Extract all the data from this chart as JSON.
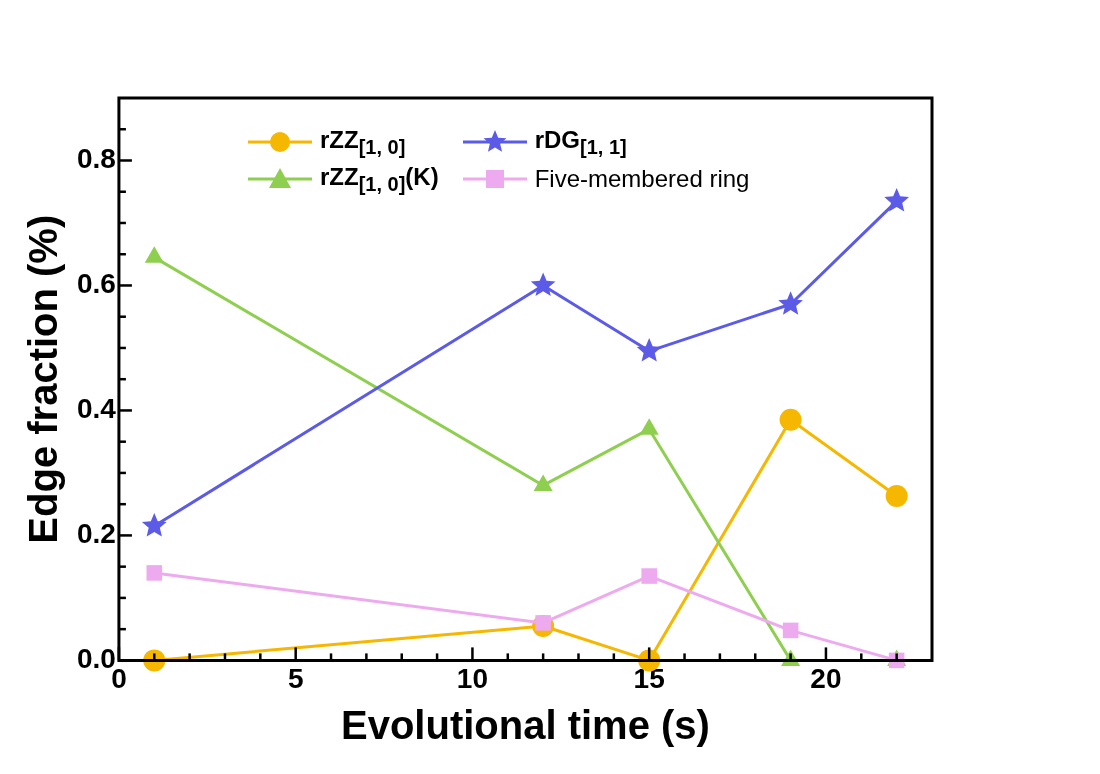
{
  "chart_data": {
    "type": "line",
    "xlabel": "Evolutional time (s)",
    "ylabel": "Edge fraction (%)",
    "x": [
      1,
      12,
      15,
      19,
      22
    ],
    "xlim": [
      0,
      23
    ],
    "xticks": [
      0,
      {
        "value": 1,
        "label": null
      },
      {
        "value": 2,
        "label": null
      },
      {
        "value": 3,
        "label": null
      },
      {
        "value": 4,
        "label": null
      },
      5,
      {
        "value": 6,
        "label": null
      },
      {
        "value": 7,
        "label": null
      },
      {
        "value": 8,
        "label": null
      },
      {
        "value": 9,
        "label": null
      },
      10,
      {
        "value": 11,
        "label": null
      },
      {
        "value": 12,
        "label": null
      },
      {
        "value": 13,
        "label": null
      },
      {
        "value": 14,
        "label": null
      },
      15,
      {
        "value": 16,
        "label": null
      },
      {
        "value": 17,
        "label": null
      },
      {
        "value": 18,
        "label": null
      },
      {
        "value": 19,
        "label": null
      },
      20,
      {
        "value": 21,
        "label": null
      },
      {
        "value": 22,
        "label": null
      }
    ],
    "ylim": [
      0,
      0.9
    ],
    "yticks": [
      {
        "value": 0,
        "label": "0.0"
      },
      {
        "value": 0.05,
        "label": null
      },
      {
        "value": 0.1,
        "label": null
      },
      {
        "value": 0.15,
        "label": null
      },
      {
        "value": 0.2,
        "label": "0.2"
      },
      {
        "value": 0.25,
        "label": null
      },
      {
        "value": 0.3,
        "label": null
      },
      {
        "value": 0.35,
        "label": null
      },
      {
        "value": 0.4,
        "label": "0.4"
      },
      {
        "value": 0.45,
        "label": null
      },
      {
        "value": 0.5,
        "label": null
      },
      {
        "value": 0.55,
        "label": null
      },
      {
        "value": 0.6,
        "label": "0.6"
      },
      {
        "value": 0.65,
        "label": null
      },
      {
        "value": 0.7,
        "label": null
      },
      {
        "value": 0.75,
        "label": null
      },
      {
        "value": 0.8,
        "label": "0.8"
      },
      {
        "value": 0.85,
        "label": null
      }
    ],
    "grid": false,
    "legend": "top left",
    "series": [
      {
        "name": "rZZ$_{[1, 0]}$",
        "color": "#f5b700",
        "marker": "circle",
        "values": [
          0,
          0.055,
          0,
          0.385,
          0.263
        ]
      },
      {
        "name": "rZZ$_{[1, 0]}$(K)",
        "color": "#8fcf4f",
        "marker": "triangle",
        "values": [
          0.645,
          0.28,
          0.37,
          0,
          0
        ]
      },
      {
        "name": "rDG$_{[1, 1]}$",
        "color": "#5b5be8",
        "marker": "star",
        "values": [
          0.215,
          0.6,
          0.495,
          0.57,
          0.735
        ]
      },
      {
        "name": "Five-membered ring",
        "color": "#eeaaee",
        "marker": "square",
        "values": [
          0.14,
          0.06,
          0.135,
          0.048,
          0
        ]
      }
    ]
  }
}
